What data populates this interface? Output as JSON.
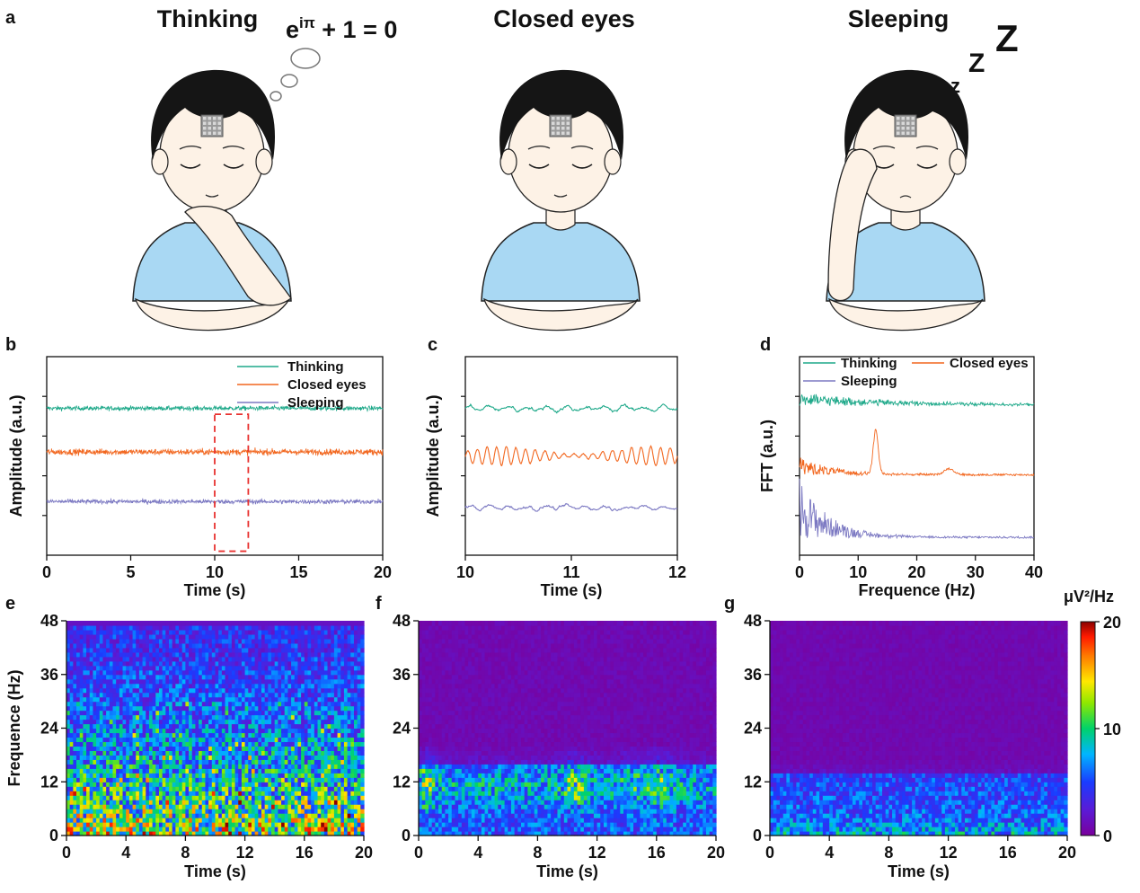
{
  "panel_letters": [
    "a",
    "b",
    "c",
    "d",
    "e",
    "f",
    "g"
  ],
  "illustrations": [
    {
      "title": "Thinking",
      "annotation": "e^{iπ} + 1 = 0"
    },
    {
      "title": "Closed eyes"
    },
    {
      "title": "Sleeping",
      "annotation": "z Z Z"
    }
  ],
  "equation": {
    "base": "e",
    "exponent": "iπ",
    "rest": " + 1 = 0"
  },
  "sleep_letters": [
    "z",
    "Z",
    "Z"
  ],
  "colors": {
    "thinking": "#1fa98a",
    "closed_eyes": "#f2671f",
    "sleeping": "#7b78c2",
    "highlight_box": "#e8312f",
    "shirt": "#a9d8f3",
    "hair": "#151515",
    "skin": "#fdf2e6"
  },
  "chart_data": [
    {
      "panel": "b",
      "type": "line",
      "xlabel": "Time (s)",
      "ylabel": "Amplitude (a.u.)",
      "xlim": [
        0,
        20
      ],
      "xticks": [
        0,
        5,
        10,
        15,
        20
      ],
      "legend": [
        "Thinking",
        "Closed eyes",
        "Sleeping"
      ],
      "legend_position": "top-right",
      "series": [
        {
          "name": "Thinking",
          "baseline": 0.74,
          "amplitude": 0.06
        },
        {
          "name": "Closed eyes",
          "baseline": 0.52,
          "amplitude": 0.08
        },
        {
          "name": "Sleeping",
          "baseline": 0.27,
          "amplitude": 0.06
        }
      ],
      "highlight_range": [
        10,
        12
      ]
    },
    {
      "panel": "c",
      "type": "line",
      "xlabel": "Time (s)",
      "ylabel": "Amplitude (a.u.)",
      "xlim": [
        10,
        12
      ],
      "xticks": [
        10,
        11,
        12
      ],
      "series": [
        {
          "name": "Thinking",
          "baseline": 0.74,
          "amplitude": 0.07
        },
        {
          "name": "Closed eyes",
          "baseline": 0.5,
          "amplitude": 0.12
        },
        {
          "name": "Sleeping",
          "baseline": 0.24,
          "amplitude": 0.06
        }
      ]
    },
    {
      "panel": "d",
      "type": "line",
      "xlabel": "Frequence (Hz)",
      "ylabel": "FFT (a.u.)",
      "xlim": [
        0,
        40
      ],
      "xticks": [
        0,
        10,
        20,
        30,
        40
      ],
      "legend": [
        "Thinking",
        "Closed eyes",
        "Sleeping"
      ],
      "legend_position": "top",
      "series": [
        {
          "name": "Thinking",
          "baseline": 0.73,
          "peak_hz": null
        },
        {
          "name": "Closed eyes",
          "baseline": 0.39,
          "peak_hz": 13
        },
        {
          "name": "Sleeping",
          "baseline": 0.08,
          "peak_hz": null
        }
      ]
    },
    {
      "panel": "e",
      "type": "heatmap",
      "condition": "Thinking",
      "xlabel": "Time (s)",
      "ylabel": "Frequence (Hz)",
      "xlim": [
        0,
        20
      ],
      "ylim": [
        0,
        48
      ],
      "xticks": [
        0,
        4,
        8,
        12,
        16,
        20
      ],
      "yticks": [
        0,
        12,
        24,
        36,
        48
      ]
    },
    {
      "panel": "f",
      "type": "heatmap",
      "condition": "Closed eyes",
      "xlabel": "Time (s)",
      "ylabel": "",
      "xlim": [
        0,
        20
      ],
      "ylim": [
        0,
        48
      ],
      "xticks": [
        0,
        4,
        8,
        12,
        16,
        20
      ],
      "yticks": [
        0,
        12,
        24,
        36,
        48
      ]
    },
    {
      "panel": "g",
      "type": "heatmap",
      "condition": "Sleeping",
      "xlabel": "Time (s)",
      "ylabel": "",
      "xlim": [
        0,
        20
      ],
      "ylim": [
        0,
        48
      ],
      "xticks": [
        0,
        4,
        8,
        12,
        16,
        20
      ],
      "yticks": [
        0,
        12,
        24,
        36,
        48
      ]
    }
  ],
  "colorbar": {
    "label": "μV²/Hz",
    "ticks": [
      0,
      10,
      20
    ],
    "range": [
      0,
      20
    ]
  }
}
